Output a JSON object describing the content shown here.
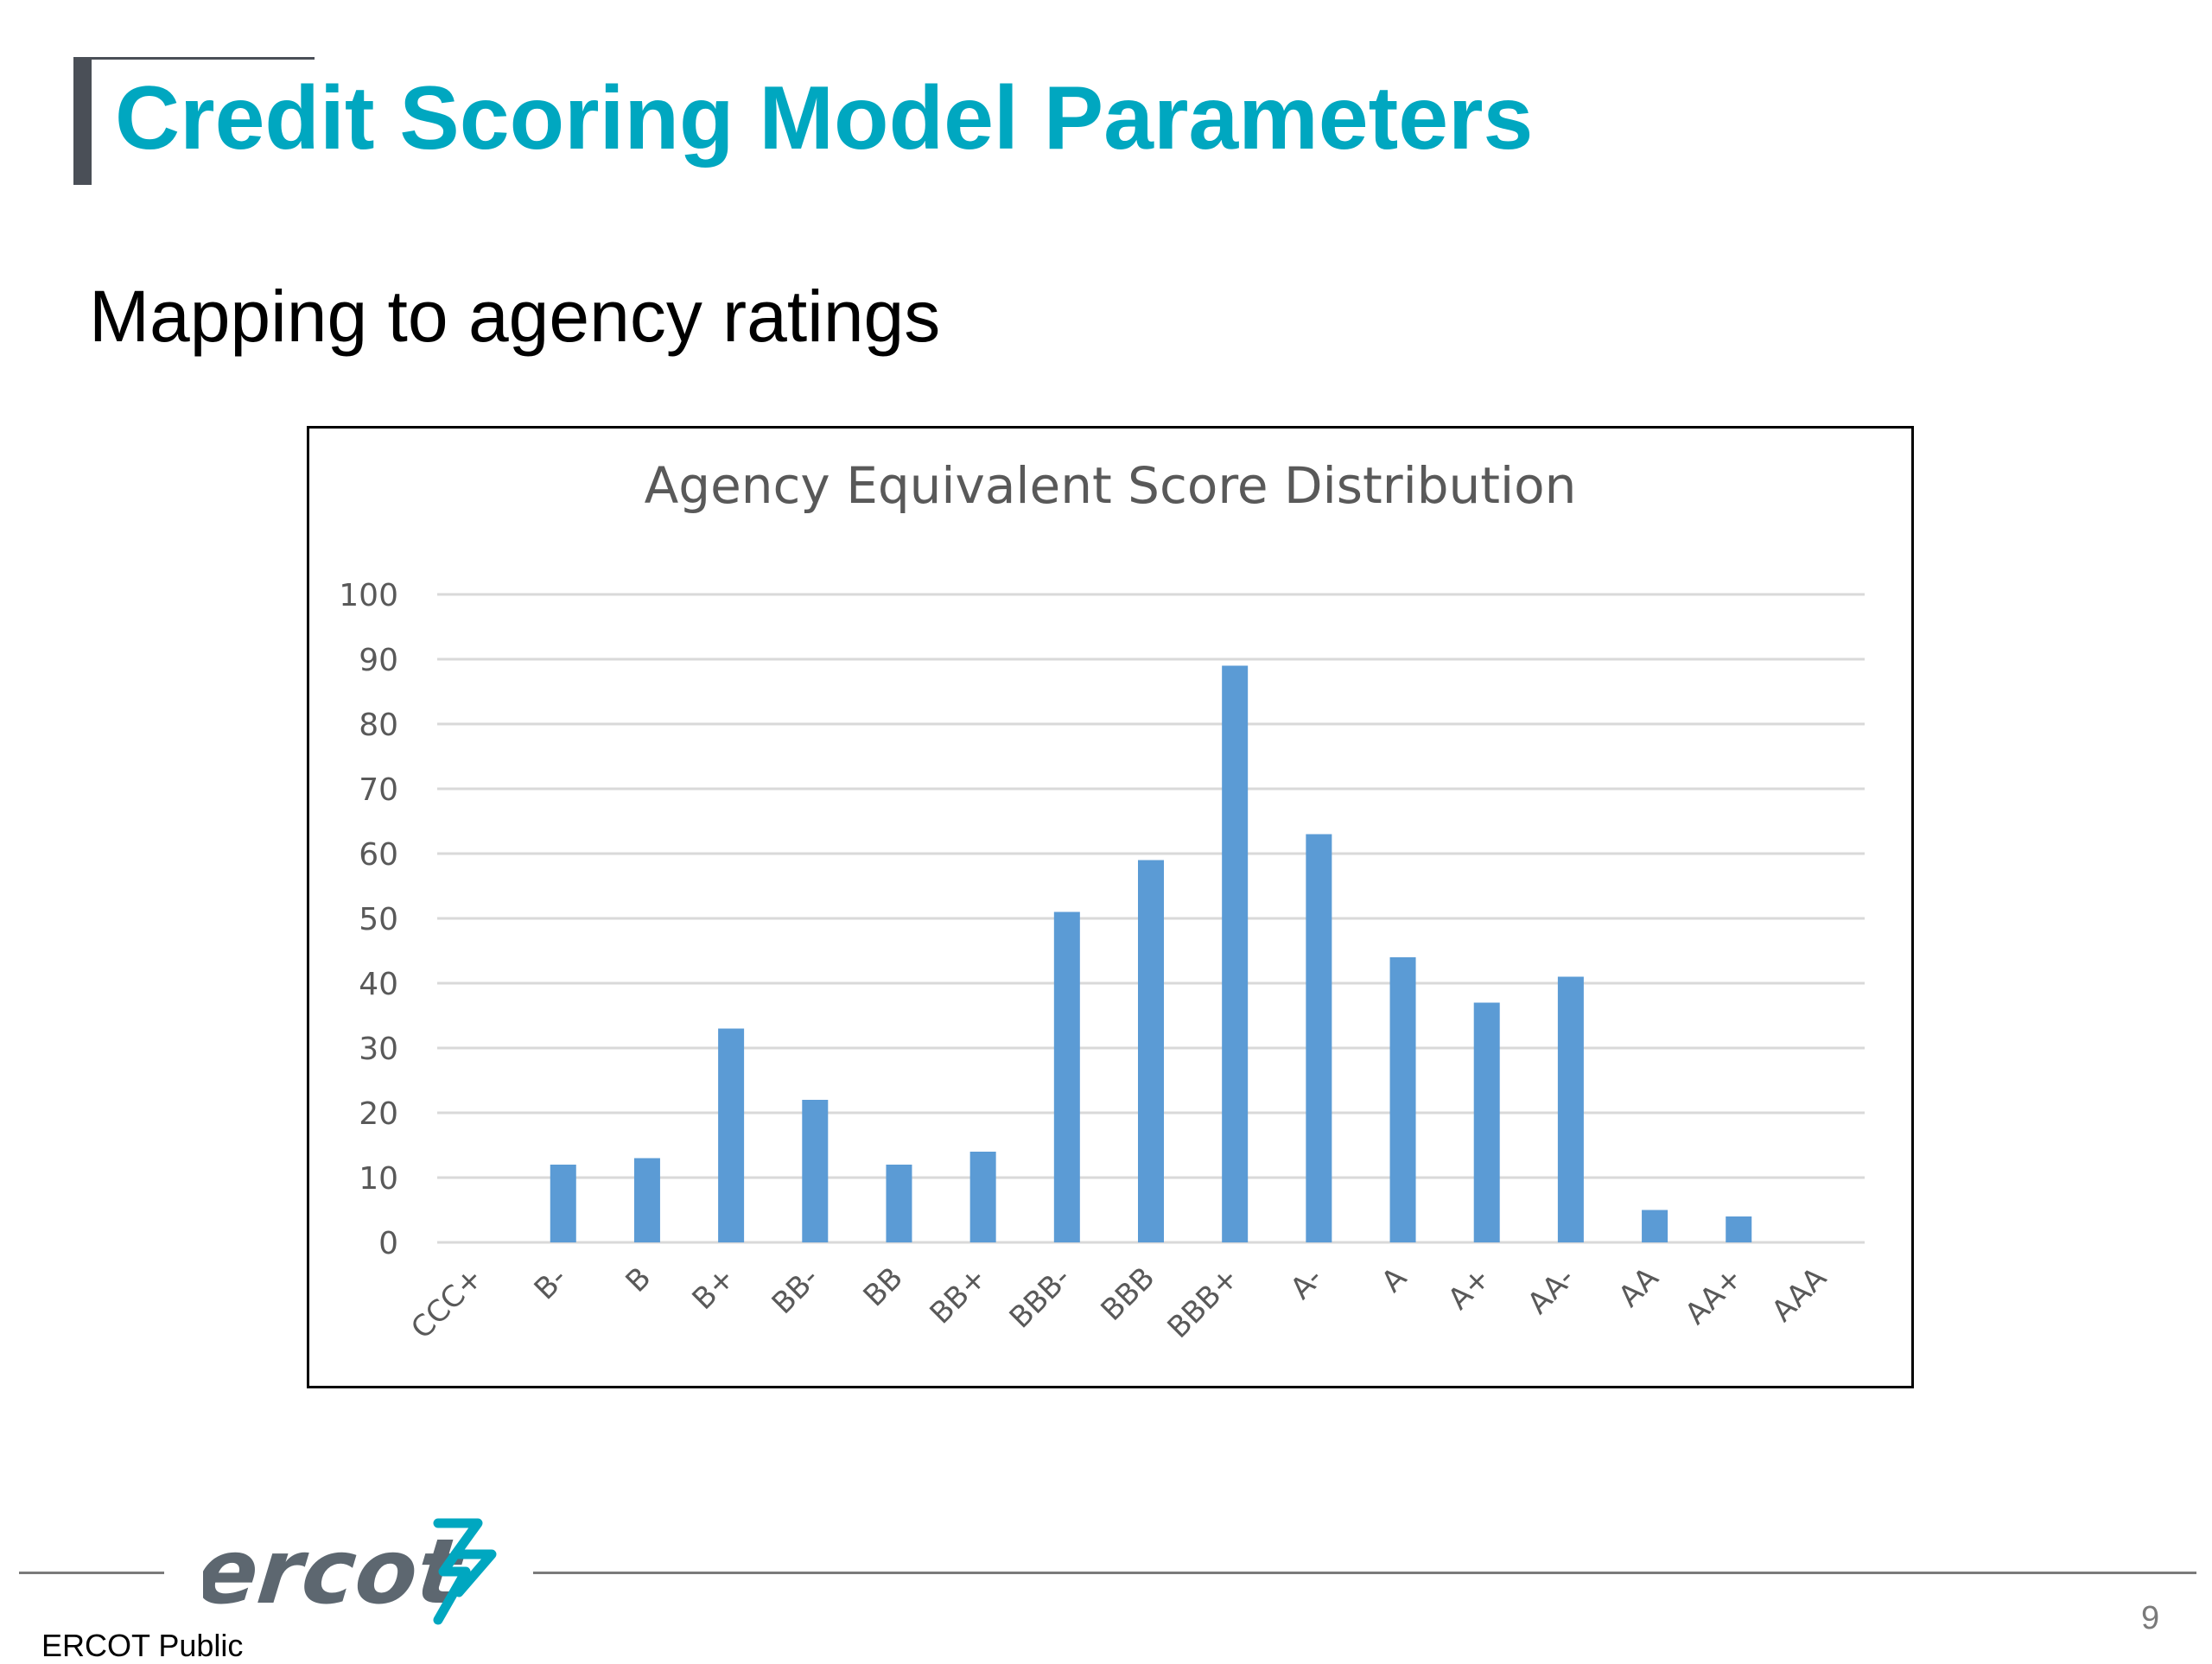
{
  "slide": {
    "title": "Credit Scoring Model Parameters",
    "subtitle": "Mapping to agency ratings",
    "footer_label": "ERCOT Public",
    "page_number": "9",
    "logo_text": "ercot"
  },
  "colors": {
    "title": "#00a7c0",
    "bar": "#5b9bd5",
    "gridline": "#d9d9d9",
    "axis_text": "#595959"
  },
  "chart_data": {
    "type": "bar",
    "title": "Agency Equivalent Score Distribution",
    "xlabel": "",
    "ylabel": "",
    "categories": [
      "CCC+",
      "B-",
      "B",
      "B+",
      "BB-",
      "BB",
      "BB+",
      "BBB-",
      "BBB",
      "BBB+",
      "A-",
      "A",
      "A+",
      "AA-",
      "AA",
      "AA+",
      "AAA"
    ],
    "values": [
      0,
      12,
      13,
      33,
      22,
      12,
      14,
      51,
      59,
      89,
      63,
      44,
      37,
      41,
      5,
      4,
      0
    ],
    "ylim": [
      0,
      100
    ],
    "yticks": [
      "0",
      "10",
      "20",
      "30",
      "40",
      "50",
      "60",
      "70",
      "80",
      "90",
      "100"
    ],
    "grid": true,
    "legend": "none"
  }
}
